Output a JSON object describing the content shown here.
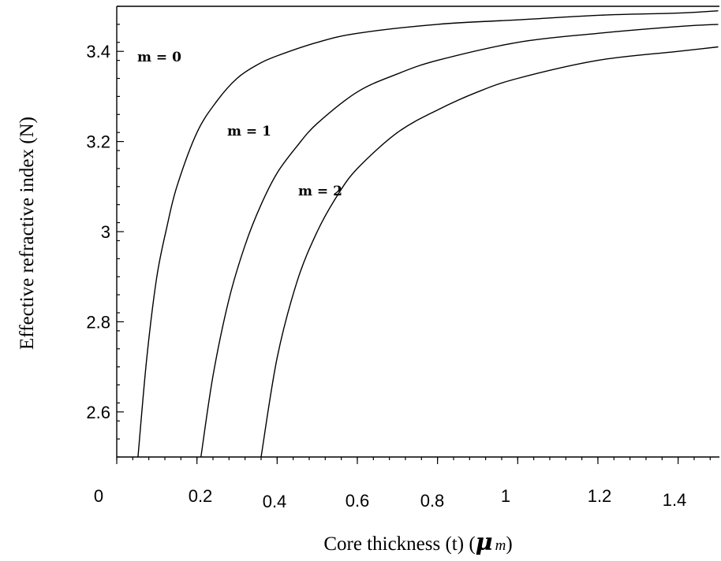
{
  "chart_data": {
    "type": "line",
    "title": "",
    "xlabel": "Core thickness (t) (",
    "xlabel_symbol": "μ",
    "xlabel_unit": "m",
    "xlabel_close": ")",
    "ylabel": "Effective refractive index (N)",
    "xlim": [
      0,
      1.5
    ],
    "ylim": [
      2.5,
      3.5
    ],
    "x_ticks": [
      {
        "value": 0,
        "label": "0"
      },
      {
        "value": 0.2,
        "label": "0.2"
      },
      {
        "value": 0.4,
        "label": "0.4"
      },
      {
        "value": 0.6,
        "label": "0.6"
      },
      {
        "value": 0.8,
        "label": "0.8"
      },
      {
        "value": 1.0,
        "label": "1"
      },
      {
        "value": 1.2,
        "label": "1.2"
      },
      {
        "value": 1.4,
        "label": "1.4"
      }
    ],
    "y_ticks": [
      {
        "value": 2.6,
        "label": "2.6"
      },
      {
        "value": 2.8,
        "label": "2.8"
      },
      {
        "value": 3.0,
        "label": "3"
      },
      {
        "value": 3.2,
        "label": "3.2"
      },
      {
        "value": 3.4,
        "label": "3.4"
      }
    ],
    "grid": false,
    "series": [
      {
        "name": "m = 0",
        "x": [
          0.053,
          0.075,
          0.1,
          0.125,
          0.15,
          0.2,
          0.25,
          0.3,
          0.35,
          0.4,
          0.5,
          0.6,
          0.8,
          1.0,
          1.2,
          1.4,
          1.5
        ],
        "y": [
          2.5,
          2.72,
          2.9,
          3.01,
          3.1,
          3.22,
          3.29,
          3.34,
          3.37,
          3.39,
          3.42,
          3.44,
          3.46,
          3.47,
          3.48,
          3.485,
          3.49
        ]
      },
      {
        "name": "m = 1",
        "x": [
          0.21,
          0.24,
          0.28,
          0.32,
          0.36,
          0.4,
          0.45,
          0.5,
          0.6,
          0.7,
          0.8,
          1.0,
          1.2,
          1.4,
          1.5
        ],
        "y": [
          2.5,
          2.68,
          2.85,
          2.97,
          3.06,
          3.13,
          3.19,
          3.24,
          3.31,
          3.35,
          3.38,
          3.42,
          3.44,
          3.455,
          3.46
        ]
      },
      {
        "name": "m = 2",
        "x": [
          0.36,
          0.4,
          0.45,
          0.5,
          0.55,
          0.6,
          0.7,
          0.8,
          0.9,
          1.0,
          1.2,
          1.4,
          1.5
        ],
        "y": [
          2.5,
          2.72,
          2.89,
          3.0,
          3.08,
          3.14,
          3.22,
          3.27,
          3.31,
          3.34,
          3.38,
          3.4,
          3.41
        ]
      }
    ]
  }
}
